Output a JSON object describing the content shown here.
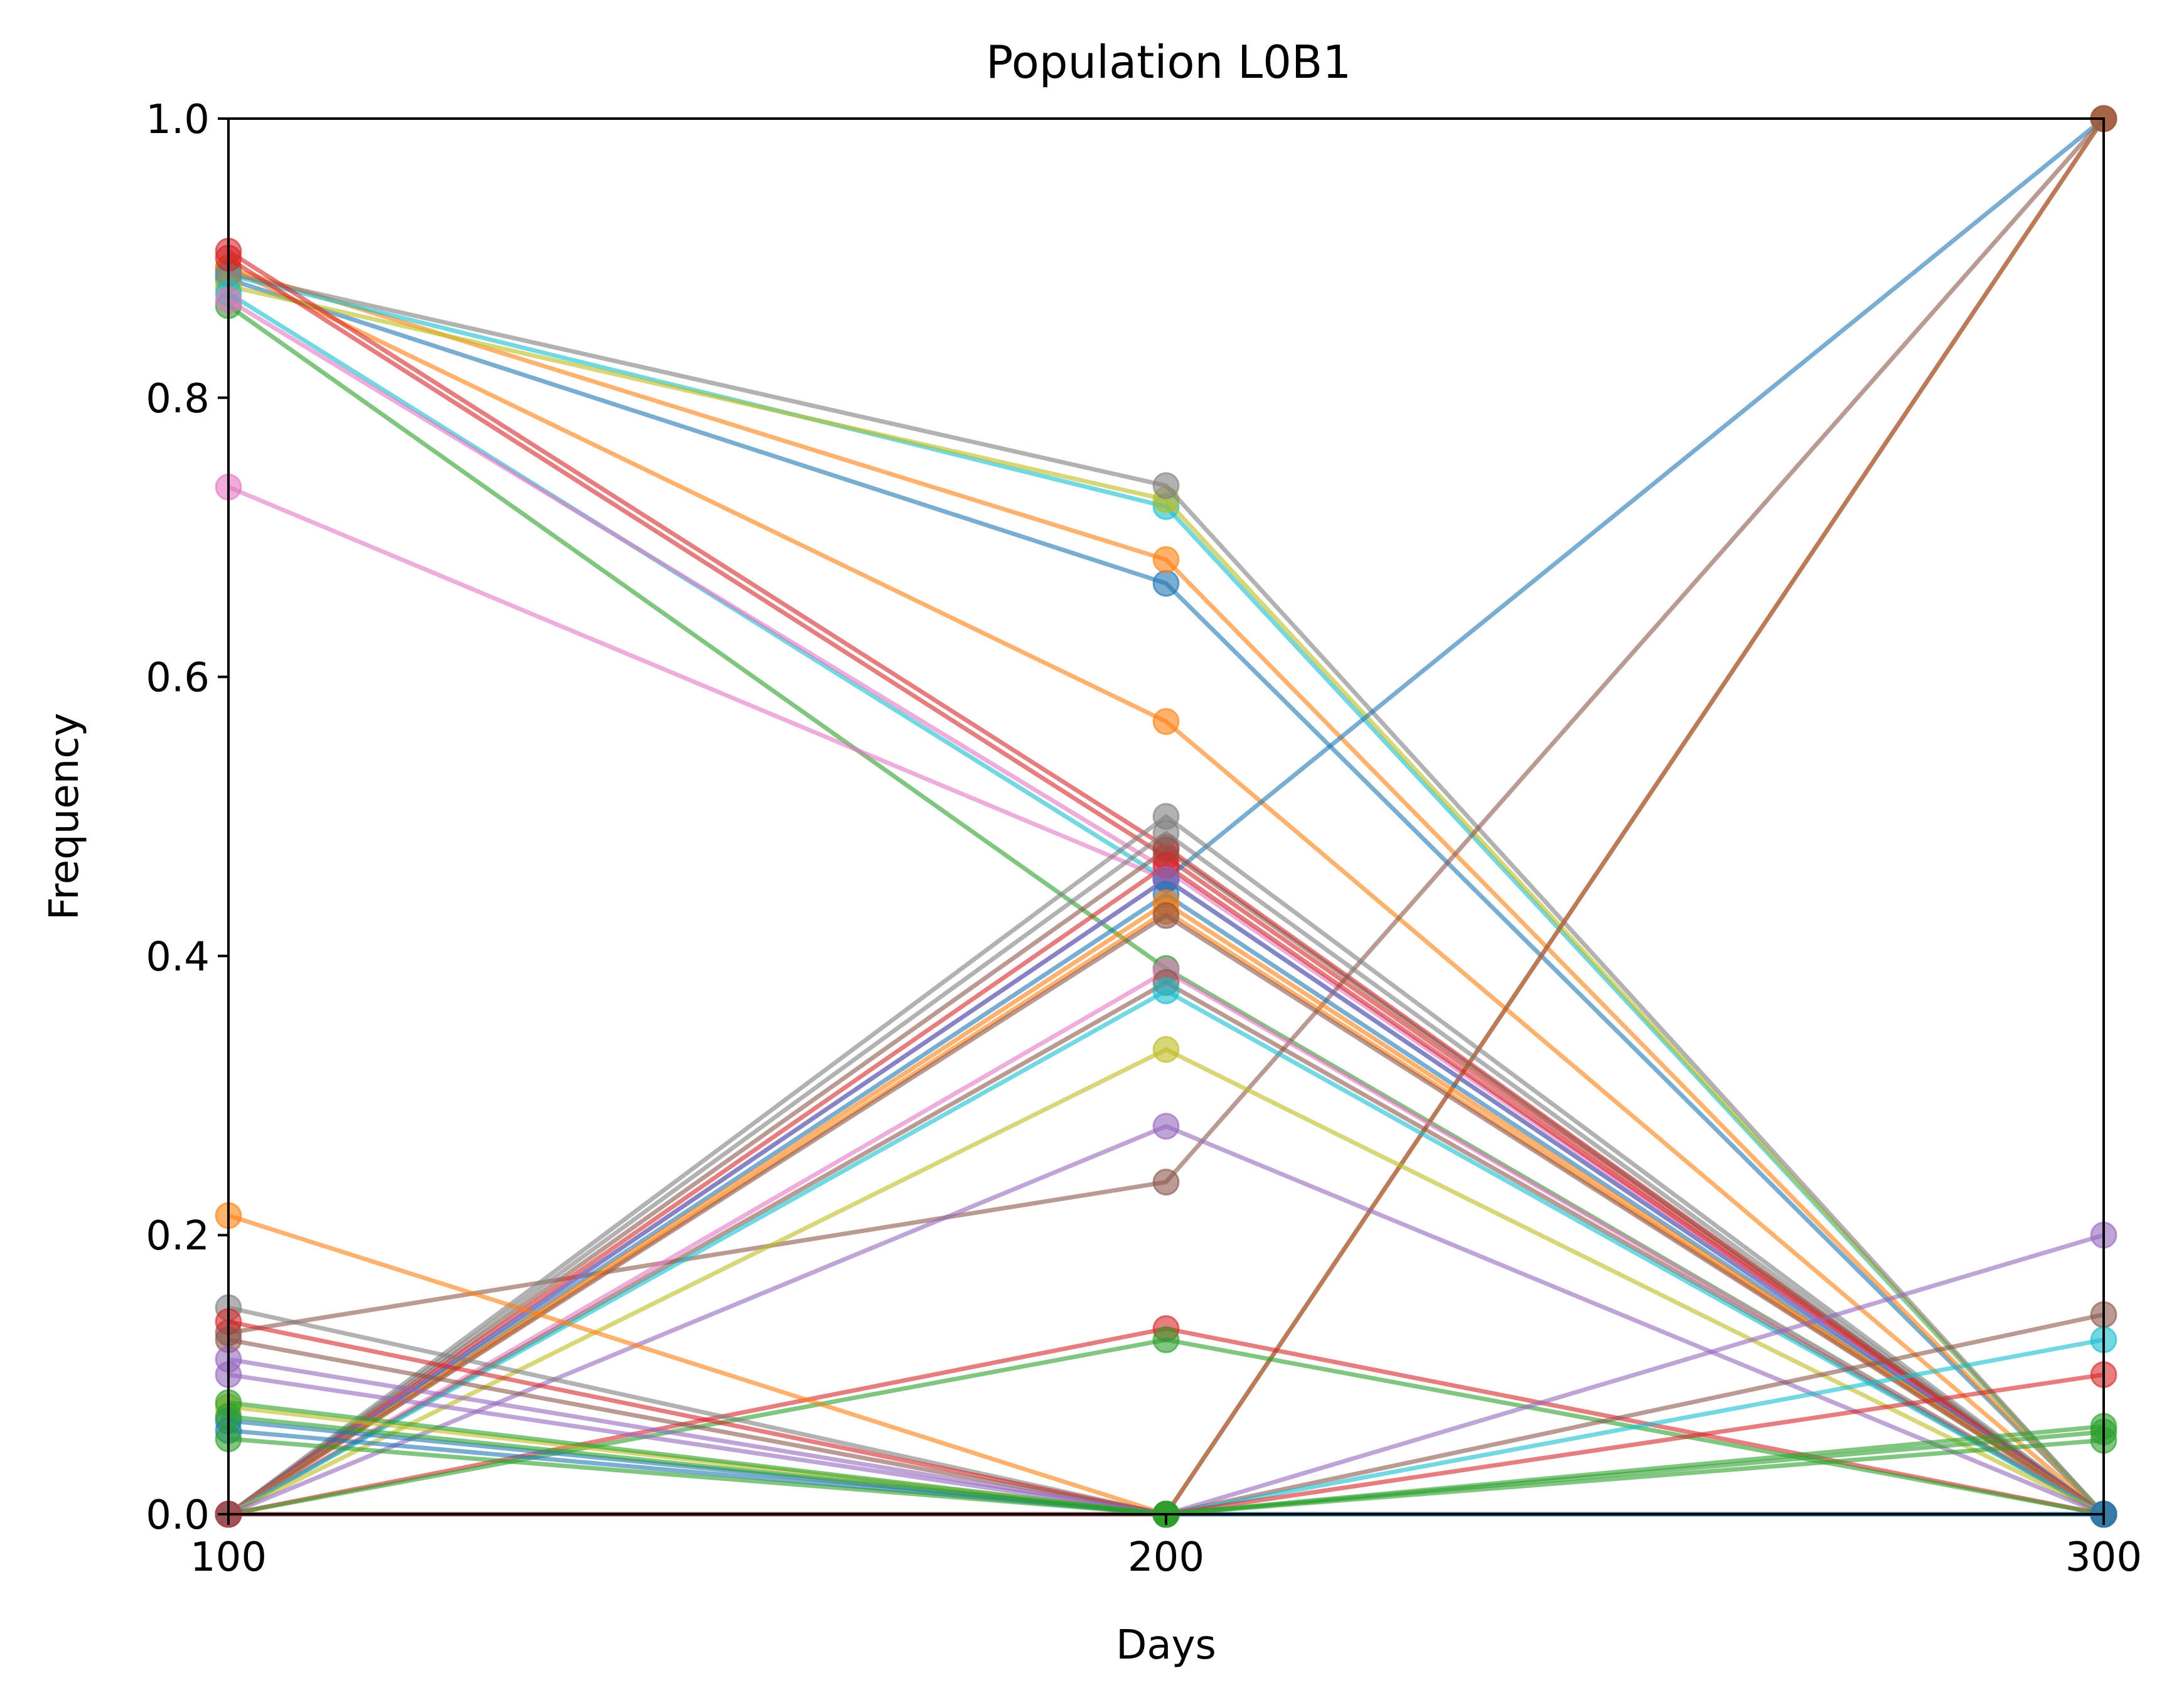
{
  "chart_data": {
    "type": "line",
    "title": "Population L0B1",
    "xlabel": "Days",
    "ylabel": "Frequency",
    "x": [
      100,
      200,
      300
    ],
    "xlim": [
      100,
      300
    ],
    "ylim": [
      0,
      1
    ],
    "xticks": [
      "100",
      "200",
      "300"
    ],
    "yticks": [
      "0.0",
      "0.2",
      "0.4",
      "0.6",
      "0.8",
      "1.0"
    ],
    "grid": false,
    "legend": "none",
    "series": [
      {
        "color": "#1f77b4",
        "values": [
          0.885,
          0.667,
          0.0
        ]
      },
      {
        "color": "#ff7f0e",
        "values": [
          0.893,
          0.684,
          0.0
        ]
      },
      {
        "color": "#ff7f0e",
        "values": [
          0.893,
          0.568,
          0.0
        ]
      },
      {
        "color": "#17becf",
        "values": [
          0.888,
          0.722,
          0.0
        ]
      },
      {
        "color": "#bcbd22",
        "values": [
          0.88,
          0.727,
          0.0
        ]
      },
      {
        "color": "#7f7f7f",
        "values": [
          0.889,
          0.737,
          0.0
        ]
      },
      {
        "color": "#d62728",
        "values": [
          0.905,
          0.478,
          0.0
        ]
      },
      {
        "color": "#2ca02c",
        "values": [
          0.866,
          0.391,
          0.0
        ]
      },
      {
        "color": "#e377c2",
        "values": [
          0.736,
          0.455,
          0.0
        ]
      },
      {
        "color": "#17becf",
        "values": [
          0.875,
          0.455,
          0.0
        ]
      },
      {
        "color": "#e377c2",
        "values": [
          0.87,
          0.462,
          0.0
        ]
      },
      {
        "color": "#d62728",
        "values": [
          0.9,
          0.471,
          0.0
        ]
      },
      {
        "color": "#1f77b4",
        "values": [
          0.0,
          0.455,
          1.0
        ]
      },
      {
        "color": "#8c564b",
        "values": [
          0.13,
          0.238,
          1.0
        ]
      },
      {
        "color": "#ff7f0e",
        "values": [
          0.0,
          0.0,
          1.0
        ]
      },
      {
        "color": "#8c564b",
        "values": [
          0.0,
          0.0,
          1.0
        ]
      },
      {
        "color": "#7f7f7f",
        "values": [
          0.0,
          0.5,
          0.0
        ]
      },
      {
        "color": "#7f7f7f",
        "values": [
          0.0,
          0.488,
          0.0
        ]
      },
      {
        "color": "#8c564b",
        "values": [
          0.0,
          0.476,
          0.0
        ]
      },
      {
        "color": "#d62728",
        "values": [
          0.0,
          0.465,
          0.0
        ]
      },
      {
        "color": "#9467bd",
        "values": [
          0.0,
          0.455,
          0.0
        ]
      },
      {
        "color": "#1f77b4",
        "values": [
          0.0,
          0.444,
          0.0
        ]
      },
      {
        "color": "#ff7f0e",
        "values": [
          0.0,
          0.438,
          0.0
        ]
      },
      {
        "color": "#ff7f0e",
        "values": [
          0.0,
          0.432,
          0.0
        ]
      },
      {
        "color": "#8c564b",
        "values": [
          0.0,
          0.429,
          0.0
        ]
      },
      {
        "color": "#e377c2",
        "values": [
          0.0,
          0.389,
          0.0
        ]
      },
      {
        "color": "#8c564b",
        "values": [
          0.0,
          0.381,
          0.0
        ]
      },
      {
        "color": "#17becf",
        "values": [
          0.0,
          0.375,
          0.0
        ]
      },
      {
        "color": "#bcbd22",
        "values": [
          0.0,
          0.333,
          0.0
        ]
      },
      {
        "color": "#9467bd",
        "values": [
          0.0,
          0.278,
          0.0
        ]
      },
      {
        "color": "#d62728",
        "values": [
          0.0,
          0.133,
          0.0
        ]
      },
      {
        "color": "#2ca02c",
        "values": [
          0.0,
          0.125,
          0.0
        ]
      },
      {
        "color": "#ff7f0e",
        "values": [
          0.214,
          0.0,
          0.0
        ]
      },
      {
        "color": "#7f7f7f",
        "values": [
          0.148,
          0.0,
          0.0
        ]
      },
      {
        "color": "#d62728",
        "values": [
          0.138,
          0.0,
          0.0
        ]
      },
      {
        "color": "#8c564b",
        "values": [
          0.125,
          0.0,
          0.0
        ]
      },
      {
        "color": "#9467bd",
        "values": [
          0.111,
          0.0,
          0.0
        ]
      },
      {
        "color": "#9467bd",
        "values": [
          0.1,
          0.0,
          0.0
        ]
      },
      {
        "color": "#bcbd22",
        "values": [
          0.077,
          0.0,
          0.0
        ]
      },
      {
        "color": "#1f77b4",
        "values": [
          0.067,
          0.0,
          0.0
        ]
      },
      {
        "color": "#1f77b4",
        "values": [
          0.06,
          0.0,
          0.0
        ]
      },
      {
        "color": "#9467bd",
        "values": [
          0.0,
          0.0,
          0.2
        ]
      },
      {
        "color": "#8c564b",
        "values": [
          0.0,
          0.0,
          0.143
        ]
      },
      {
        "color": "#17becf",
        "values": [
          0.0,
          0.0,
          0.125
        ]
      },
      {
        "color": "#d62728",
        "values": [
          0.0,
          0.0,
          0.1
        ]
      },
      {
        "color": "#2ca02c",
        "values": [
          0.08,
          0.0,
          0.063
        ]
      },
      {
        "color": "#2ca02c",
        "values": [
          0.07,
          0.0,
          0.059
        ]
      },
      {
        "color": "#2ca02c",
        "values": [
          0.054,
          0.0,
          0.053
        ]
      }
    ]
  }
}
